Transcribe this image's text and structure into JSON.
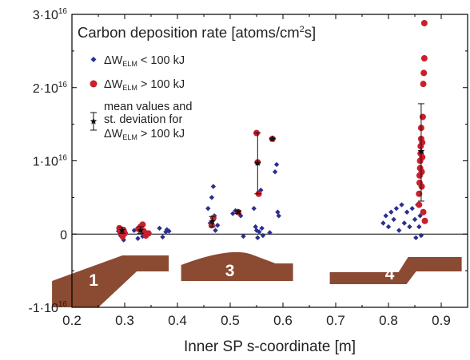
{
  "chart_data": {
    "type": "scatter",
    "title": "Carbon deposition rate [atoms/cm2s]",
    "xlabel": "Inner SP s-coordinate [m]",
    "ylabel": "",
    "xlim": [
      0.2,
      0.95
    ],
    "ylim": [
      -1e+16,
      3e+16
    ],
    "x_ticks": [
      0.2,
      0.3,
      0.4,
      0.5,
      0.6,
      0.7,
      0.8,
      0.9
    ],
    "x_tick_labels": [
      "0.2",
      "0.3",
      "0.4",
      "0.5",
      "0.6",
      "0.7",
      "0.8",
      "0.9"
    ],
    "y_ticks": [
      -1e+16,
      0,
      1e+16,
      2e+16,
      3e+16
    ],
    "y_tick_labels": [
      {
        "base": "-1·10",
        "exp": "16"
      },
      {
        "base": "0",
        "exp": ""
      },
      {
        "base": "1·10",
        "exp": "16"
      },
      {
        "base": "2·10",
        "exp": "16"
      },
      {
        "base": "3·10",
        "exp": "16"
      }
    ],
    "grid": false,
    "legend_position": "top-left",
    "legend": [
      {
        "symbol": "diamond",
        "color": "#2b2f8f",
        "prefix": "ΔW",
        "sub": "ELM",
        "suffix": " < 100 kJ"
      },
      {
        "symbol": "circle",
        "color": "#c8202c",
        "prefix": "ΔW",
        "sub": "ELM",
        "suffix": " > 100 kJ"
      },
      {
        "symbol": "errorbar-star",
        "color": "#222222",
        "lines": [
          "mean values and",
          "st. deviation for"
        ],
        "prefix": "ΔW",
        "sub": "ELM",
        "suffix": " > 100 kJ"
      }
    ],
    "series": [
      {
        "name": "ΔWELM < 100 kJ",
        "marker": "diamond",
        "color": "#2b2f8f",
        "points": [
          [
            0.288,
            400000000000000.0
          ],
          [
            0.292,
            -200000000000000.0
          ],
          [
            0.295,
            600000000000000.0
          ],
          [
            0.298,
            -800000000000000.0
          ],
          [
            0.3,
            200000000000000.0
          ],
          [
            0.318,
            500000000000000.0
          ],
          [
            0.325,
            -600000000000000.0
          ],
          [
            0.33,
            800000000000000.0
          ],
          [
            0.334,
            -300000000000000.0
          ],
          [
            0.338,
            300000000000000.0
          ],
          [
            0.366,
            800000000000000.0
          ],
          [
            0.372,
            -400000000000000.0
          ],
          [
            0.378,
            300000000000000.0
          ],
          [
            0.38,
            600000000000000.0
          ],
          [
            0.384,
            400000000000000.0
          ],
          [
            0.458,
            3500000000000000.0
          ],
          [
            0.462,
            1500000000000000.0
          ],
          [
            0.465,
            5000000000000000.0
          ],
          [
            0.468,
            6500000000000000.0
          ],
          [
            0.47,
            2500000000000000.0
          ],
          [
            0.472,
            500000000000000.0
          ],
          [
            0.476,
            1200000000000000.0
          ],
          [
            0.505,
            2800000000000000.0
          ],
          [
            0.51,
            3200000000000000.0
          ],
          [
            0.515,
            3000000000000000.0
          ],
          [
            0.52,
            2500000000000000.0
          ],
          [
            0.525,
            -300000000000000.0
          ],
          [
            0.545,
            3500000000000000.0
          ],
          [
            0.548,
            1000000000000000.0
          ],
          [
            0.55,
            500000000000000.0
          ],
          [
            0.552,
            -500000000000000.0
          ],
          [
            0.555,
            300000000000000.0
          ],
          [
            0.558,
            6000000000000000.0
          ],
          [
            0.56,
            800000000000000.0
          ],
          [
            0.562,
            -200000000000000.0
          ],
          [
            0.575,
            200000000000000.0
          ],
          [
            0.585,
            8500000000000000.0
          ],
          [
            0.588,
            9500000000000000.0
          ],
          [
            0.59,
            3000000000000000.0
          ],
          [
            0.592,
            2500000000000000.0
          ],
          [
            0.79,
            1500000000000000.0
          ],
          [
            0.795,
            2500000000000000.0
          ],
          [
            0.8,
            1000000000000000.0
          ],
          [
            0.805,
            3000000000000000.0
          ],
          [
            0.81,
            2000000000000000.0
          ],
          [
            0.815,
            3500000000000000.0
          ],
          [
            0.82,
            500000000000000.0
          ],
          [
            0.825,
            4000000000000000.0
          ],
          [
            0.83,
            1500000000000000.0
          ],
          [
            0.835,
            3000000000000000.0
          ],
          [
            0.84,
            1000000000000000.0
          ],
          [
            0.845,
            3500000000000000.0
          ],
          [
            0.85,
            2000000000000000.0
          ],
          [
            0.852,
            -500000000000000.0
          ],
          [
            0.855,
            4000000000000000.0
          ],
          [
            0.858,
            1000000000000000.0
          ],
          [
            0.86,
            2500000000000000.0
          ],
          [
            0.862,
            -200000000000000.0
          ]
        ]
      },
      {
        "name": "ΔWELM > 100 kJ",
        "marker": "circle",
        "color": "#c8202c",
        "points": [
          [
            0.29,
            800000000000000.0
          ],
          [
            0.292,
            300000000000000.0
          ],
          [
            0.294,
            600000000000000.0
          ],
          [
            0.296,
            -300000000000000.0
          ],
          [
            0.298,
            500000000000000.0
          ],
          [
            0.3,
            100000000000000.0
          ],
          [
            0.326,
            700000000000000.0
          ],
          [
            0.33,
            1000000000000000.0
          ],
          [
            0.334,
            1300000000000000.0
          ],
          [
            0.336,
            400000000000000.0
          ],
          [
            0.34,
            -200000000000000.0
          ],
          [
            0.345,
            100000000000000.0
          ],
          [
            0.465,
            1200000000000000.0
          ],
          [
            0.468,
            2200000000000000.0
          ],
          [
            0.515,
            3000000000000000.0
          ],
          [
            0.55,
            1.38e+16
          ],
          [
            0.552,
            9800000000000000.0
          ],
          [
            0.554,
            5500000000000000.0
          ],
          [
            0.58,
            1.3e+16
          ],
          [
            0.858,
            4000000000000000.0
          ],
          [
            0.858,
            5500000000000000.0
          ],
          [
            0.859,
            7000000000000000.0
          ],
          [
            0.859,
            8000000000000000.0
          ],
          [
            0.86,
            9000000000000000.0
          ],
          [
            0.86,
            1e+16
          ],
          [
            0.861,
            1.1e+16
          ],
          [
            0.861,
            1.2e+16
          ],
          [
            0.862,
            1.3e+16
          ],
          [
            0.862,
            1.45e+16
          ],
          [
            0.863,
            6500000000000000.0
          ],
          [
            0.863,
            8500000000000000.0
          ],
          [
            0.864,
            1.05e+16
          ],
          [
            0.864,
            1.25e+16
          ],
          [
            0.865,
            1.6e+16
          ],
          [
            0.866,
            3000000000000000.0
          ],
          [
            0.866,
            2.05e+16
          ],
          [
            0.867,
            2.2e+16
          ],
          [
            0.868,
            2.4e+16
          ],
          [
            0.868,
            2.88e+16
          ],
          [
            0.869,
            1800000000000000.0
          ]
        ]
      }
    ],
    "errorbars": [
      {
        "x": 0.295,
        "mean": 500000000000000.0,
        "low": 100000000000000.0,
        "high": 900000000000000.0
      },
      {
        "x": 0.33,
        "mean": 500000000000000.0,
        "low": 100000000000000.0,
        "high": 1000000000000000.0
      },
      {
        "x": 0.466,
        "mean": 1700000000000000.0,
        "low": 1000000000000000.0,
        "high": 2400000000000000.0
      },
      {
        "x": 0.515,
        "mean": 3000000000000000.0,
        "low": 2800000000000000.0,
        "high": 3200000000000000.0
      },
      {
        "x": 0.552,
        "mean": 9700000000000000.0,
        "low": 5500000000000000.0,
        "high": 1.38e+16
      },
      {
        "x": 0.58,
        "mean": 1.3e+16,
        "low": 1.3e+16,
        "high": 1.3e+16
      },
      {
        "x": 0.862,
        "mean": 1.13e+16,
        "low": 4500000000000000.0,
        "high": 1.78e+16
      }
    ],
    "insets": [
      {
        "label": "1",
        "x": 0.235
      },
      {
        "label": "3",
        "x": 0.51
      },
      {
        "label": "4",
        "x": 0.81
      }
    ],
    "colors": {
      "low_series": "#2b2f8f",
      "high_series": "#c8202c",
      "tile": "#8b4a32",
      "axis": "#222222"
    }
  }
}
